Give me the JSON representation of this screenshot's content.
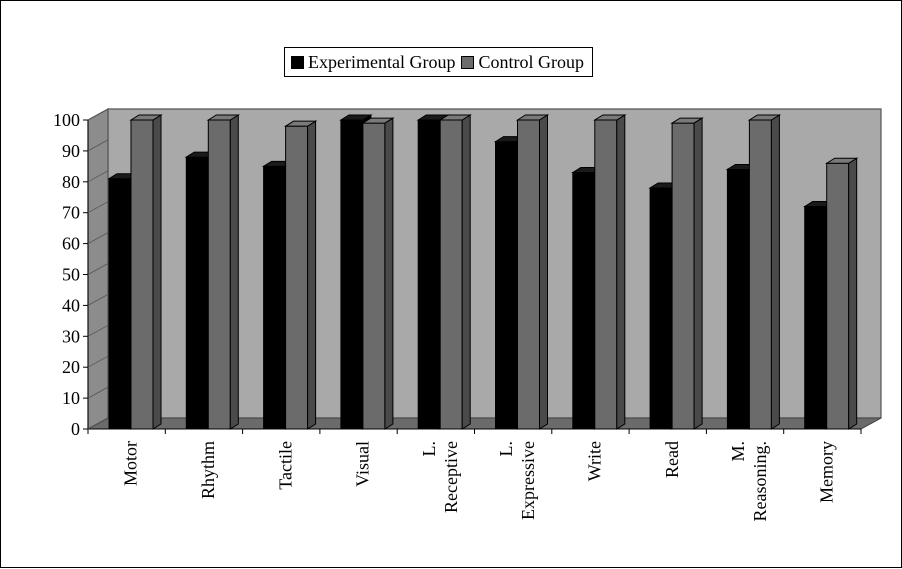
{
  "chart_data": {
    "type": "bar",
    "categories": [
      "Motor",
      "Rhythm",
      "Tactile",
      "Visual",
      "L. Receptive",
      "L. Expressive",
      "Write",
      "Read",
      "M. Reasoning.",
      "Memory"
    ],
    "category_label_lines": [
      [
        "Motor"
      ],
      [
        "Rhythm"
      ],
      [
        "Tactile"
      ],
      [
        "Visual"
      ],
      [
        "L.",
        "Receptive"
      ],
      [
        "L.",
        "Expressive"
      ],
      [
        "Write"
      ],
      [
        "Read"
      ],
      [
        "M.",
        "Reasoning."
      ],
      [
        "Memory"
      ]
    ],
    "series": [
      {
        "name": "Experimental Group",
        "color": "#000000",
        "values": [
          81,
          88,
          85,
          100,
          100,
          93,
          83,
          78,
          84,
          72
        ]
      },
      {
        "name": "Control Group",
        "color": "#6b6b6b",
        "values": [
          100,
          100,
          98,
          99,
          100,
          100,
          100,
          99,
          100,
          86
        ]
      }
    ],
    "ylim": [
      0,
      100
    ],
    "yticks": [
      "0",
      "10",
      "20",
      "30",
      "40",
      "50",
      "60",
      "70",
      "80",
      "90",
      "100"
    ],
    "legend_position": "top-center",
    "wall_color": "#a9a9a9",
    "floor_color": "#6b6b6b",
    "grid": false,
    "three_d": true
  }
}
